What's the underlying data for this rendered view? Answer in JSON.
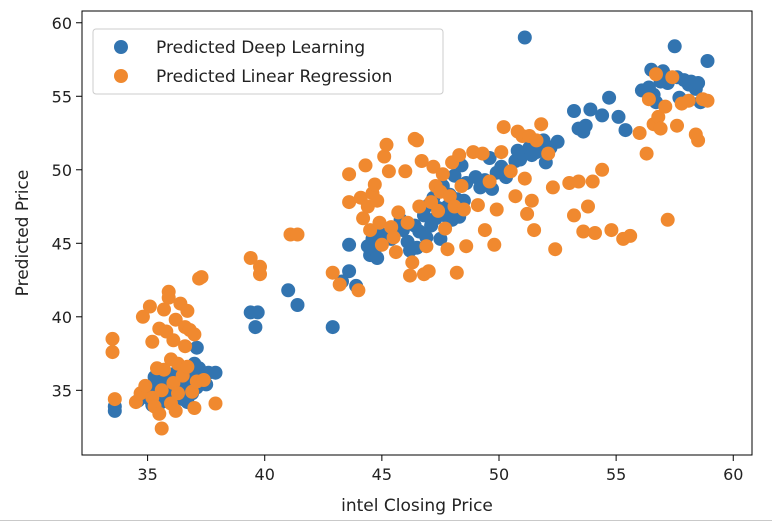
{
  "chart_data": {
    "type": "scatter",
    "xlabel": "intel Closing Price",
    "ylabel": "Predicted Price",
    "xlim": [
      32.2,
      60.8
    ],
    "ylim": [
      30.6,
      60.8
    ],
    "xticks": [
      35,
      40,
      45,
      50,
      55,
      60
    ],
    "yticks": [
      35,
      40,
      45,
      50,
      55,
      60
    ],
    "grid": false,
    "legend_position": "upper-left",
    "series": [
      {
        "name": "Predicted Deep Learning",
        "color": "#3274b0",
        "points": [
          [
            33.6,
            33.6
          ],
          [
            33.6,
            33.9
          ],
          [
            34.6,
            34.3
          ],
          [
            34.8,
            34.6
          ],
          [
            34.9,
            34.9
          ],
          [
            35.0,
            35.1
          ],
          [
            35.1,
            34.4
          ],
          [
            35.2,
            34.0
          ],
          [
            35.2,
            35.3
          ],
          [
            35.3,
            34.8
          ],
          [
            35.4,
            35.5
          ],
          [
            35.5,
            34.5
          ],
          [
            35.6,
            35.1
          ],
          [
            35.6,
            34.2
          ],
          [
            35.7,
            35.8
          ],
          [
            35.8,
            34.9
          ],
          [
            35.8,
            35.4
          ],
          [
            35.9,
            35.0
          ],
          [
            36.0,
            35.7
          ],
          [
            36.0,
            34.6
          ],
          [
            36.1,
            36.1
          ],
          [
            36.2,
            35.2
          ],
          [
            36.2,
            34.8
          ],
          [
            36.3,
            35.6
          ],
          [
            36.4,
            35.0
          ],
          [
            36.4,
            36.0
          ],
          [
            36.5,
            34.4
          ],
          [
            36.6,
            35.4
          ],
          [
            36.7,
            35.9
          ],
          [
            36.8,
            35.1
          ],
          [
            36.8,
            36.3
          ],
          [
            36.9,
            34.8
          ],
          [
            37.0,
            35.6
          ],
          [
            37.0,
            36.8
          ],
          [
            37.1,
            35.2
          ],
          [
            37.1,
            37.9
          ],
          [
            37.2,
            36.5
          ],
          [
            37.3,
            35.9
          ],
          [
            37.5,
            35.4
          ],
          [
            37.6,
            36.2
          ],
          [
            37.9,
            36.2
          ],
          [
            35.3,
            35.9
          ],
          [
            36.7,
            34.2
          ],
          [
            39.4,
            40.3
          ],
          [
            39.6,
            39.3
          ],
          [
            39.7,
            40.3
          ],
          [
            41.0,
            41.8
          ],
          [
            41.4,
            40.8
          ],
          [
            42.9,
            39.3
          ],
          [
            43.3,
            42.4
          ],
          [
            43.6,
            43.1
          ],
          [
            43.6,
            44.9
          ],
          [
            43.9,
            42.1
          ],
          [
            44.4,
            44.8
          ],
          [
            44.5,
            44.2
          ],
          [
            44.6,
            45.3
          ],
          [
            44.7,
            44.6
          ],
          [
            44.8,
            44.0
          ],
          [
            45.0,
            45.6
          ],
          [
            45.4,
            45.3
          ],
          [
            45.6,
            46.1
          ],
          [
            45.8,
            46.6
          ],
          [
            45.9,
            45.9
          ],
          [
            46.1,
            45.1
          ],
          [
            46.2,
            44.5
          ],
          [
            46.4,
            46.2
          ],
          [
            46.5,
            44.7
          ],
          [
            46.6,
            45.8
          ],
          [
            46.8,
            46.9
          ],
          [
            46.9,
            45.4
          ],
          [
            47.0,
            47.6
          ],
          [
            47.1,
            46.2
          ],
          [
            47.2,
            48.1
          ],
          [
            47.3,
            46.7
          ],
          [
            47.4,
            47.4
          ],
          [
            47.5,
            45.3
          ],
          [
            47.6,
            48.9
          ],
          [
            47.7,
            46.9
          ],
          [
            47.8,
            47.5
          ],
          [
            47.9,
            48.3
          ],
          [
            48.0,
            46.6
          ],
          [
            48.0,
            47.2
          ],
          [
            48.1,
            49.6
          ],
          [
            48.2,
            48.0
          ],
          [
            48.3,
            46.8
          ],
          [
            48.4,
            50.3
          ],
          [
            48.5,
            47.9
          ],
          [
            48.6,
            49.1
          ],
          [
            49.0,
            49.5
          ],
          [
            49.2,
            48.8
          ],
          [
            49.4,
            49.3
          ],
          [
            49.6,
            50.8
          ],
          [
            49.7,
            48.7
          ],
          [
            49.9,
            49.8
          ],
          [
            50.1,
            50.2
          ],
          [
            50.3,
            49.5
          ],
          [
            50.7,
            50.6
          ],
          [
            50.8,
            51.3
          ],
          [
            50.9,
            50.7
          ],
          [
            51.0,
            51.1
          ],
          [
            51.1,
            59.0
          ],
          [
            51.3,
            51.5
          ],
          [
            51.4,
            51.0
          ],
          [
            51.6,
            51.2
          ],
          [
            51.7,
            51.8
          ],
          [
            51.9,
            52.0
          ],
          [
            52.0,
            50.5
          ],
          [
            52.2,
            51.5
          ],
          [
            52.5,
            51.9
          ],
          [
            53.2,
            54.0
          ],
          [
            53.4,
            52.8
          ],
          [
            53.6,
            52.6
          ],
          [
            53.7,
            53.0
          ],
          [
            53.9,
            54.1
          ],
          [
            54.4,
            53.7
          ],
          [
            54.7,
            54.9
          ],
          [
            55.1,
            53.6
          ],
          [
            55.4,
            52.7
          ],
          [
            56.1,
            55.4
          ],
          [
            56.4,
            55.6
          ],
          [
            56.5,
            56.8
          ],
          [
            56.6,
            55.1
          ],
          [
            56.7,
            54.6
          ],
          [
            56.9,
            56.0
          ],
          [
            57.0,
            56.7
          ],
          [
            57.2,
            55.9
          ],
          [
            57.5,
            58.4
          ],
          [
            57.6,
            56.3
          ],
          [
            57.7,
            54.9
          ],
          [
            57.9,
            56.1
          ],
          [
            58.1,
            55.8
          ],
          [
            58.2,
            56.0
          ],
          [
            58.4,
            55.5
          ],
          [
            58.5,
            55.9
          ],
          [
            58.6,
            54.6
          ],
          [
            58.9,
            57.4
          ]
        ]
      },
      {
        "name": "Predicted Linear Regression",
        "color": "#f0892f",
        "points": [
          [
            33.5,
            38.5
          ],
          [
            33.5,
            37.6
          ],
          [
            33.6,
            34.4
          ],
          [
            34.5,
            34.2
          ],
          [
            34.7,
            34.8
          ],
          [
            34.8,
            40.0
          ],
          [
            34.9,
            35.3
          ],
          [
            35.1,
            40.7
          ],
          [
            35.2,
            38.3
          ],
          [
            35.2,
            34.5
          ],
          [
            35.3,
            33.9
          ],
          [
            35.5,
            39.2
          ],
          [
            35.5,
            33.4
          ],
          [
            35.6,
            32.4
          ],
          [
            35.6,
            35.0
          ],
          [
            35.7,
            36.4
          ],
          [
            35.7,
            40.5
          ],
          [
            35.8,
            39.0
          ],
          [
            35.9,
            41.7
          ],
          [
            35.9,
            41.3
          ],
          [
            36.0,
            37.1
          ],
          [
            36.0,
            34.1
          ],
          [
            36.1,
            38.4
          ],
          [
            36.1,
            35.5
          ],
          [
            36.2,
            39.8
          ],
          [
            36.3,
            36.8
          ],
          [
            36.3,
            34.8
          ],
          [
            36.4,
            40.9
          ],
          [
            36.5,
            36.0
          ],
          [
            36.6,
            39.3
          ],
          [
            36.6,
            38.0
          ],
          [
            36.7,
            36.6
          ],
          [
            36.7,
            40.4
          ],
          [
            36.8,
            39.1
          ],
          [
            36.9,
            34.9
          ],
          [
            37.0,
            33.8
          ],
          [
            37.0,
            38.8
          ],
          [
            37.1,
            35.6
          ],
          [
            37.2,
            42.6
          ],
          [
            37.3,
            42.7
          ],
          [
            37.4,
            35.7
          ],
          [
            37.9,
            34.1
          ],
          [
            35.4,
            36.5
          ],
          [
            36.2,
            33.6
          ],
          [
            39.4,
            44.0
          ],
          [
            39.8,
            42.9
          ],
          [
            39.8,
            43.4
          ],
          [
            41.1,
            45.6
          ],
          [
            41.4,
            45.6
          ],
          [
            42.9,
            43.0
          ],
          [
            43.2,
            42.2
          ],
          [
            43.6,
            49.7
          ],
          [
            43.6,
            47.8
          ],
          [
            44.0,
            41.8
          ],
          [
            44.1,
            48.1
          ],
          [
            44.2,
            46.7
          ],
          [
            44.3,
            50.3
          ],
          [
            44.4,
            47.5
          ],
          [
            44.5,
            45.9
          ],
          [
            44.6,
            48.4
          ],
          [
            44.7,
            49.0
          ],
          [
            44.8,
            47.9
          ],
          [
            44.9,
            46.4
          ],
          [
            45.0,
            44.9
          ],
          [
            45.1,
            50.9
          ],
          [
            45.2,
            51.7
          ],
          [
            45.3,
            49.9
          ],
          [
            45.4,
            46.1
          ],
          [
            45.5,
            45.4
          ],
          [
            45.6,
            44.4
          ],
          [
            45.7,
            47.1
          ],
          [
            46.0,
            49.9
          ],
          [
            46.1,
            46.4
          ],
          [
            46.2,
            42.8
          ],
          [
            46.3,
            43.7
          ],
          [
            46.4,
            52.1
          ],
          [
            46.5,
            52.0
          ],
          [
            46.6,
            47.5
          ],
          [
            46.7,
            50.6
          ],
          [
            46.8,
            42.9
          ],
          [
            46.9,
            44.8
          ],
          [
            47.0,
            43.1
          ],
          [
            47.1,
            47.8
          ],
          [
            47.2,
            50.2
          ],
          [
            47.3,
            48.9
          ],
          [
            47.4,
            47.2
          ],
          [
            47.5,
            48.5
          ],
          [
            47.6,
            49.7
          ],
          [
            47.7,
            46.0
          ],
          [
            47.8,
            44.6
          ],
          [
            47.9,
            48.2
          ],
          [
            48.0,
            50.5
          ],
          [
            48.1,
            47.5
          ],
          [
            48.2,
            43.0
          ],
          [
            48.3,
            51.0
          ],
          [
            48.4,
            48.9
          ],
          [
            48.5,
            47.3
          ],
          [
            48.6,
            44.8
          ],
          [
            48.9,
            51.2
          ],
          [
            49.1,
            47.6
          ],
          [
            49.3,
            51.1
          ],
          [
            49.4,
            45.9
          ],
          [
            49.6,
            49.2
          ],
          [
            49.8,
            44.9
          ],
          [
            49.9,
            47.3
          ],
          [
            50.1,
            51.2
          ],
          [
            50.2,
            52.9
          ],
          [
            50.5,
            49.9
          ],
          [
            50.7,
            48.2
          ],
          [
            50.8,
            52.6
          ],
          [
            51.0,
            52.3
          ],
          [
            51.1,
            49.4
          ],
          [
            51.2,
            47.0
          ],
          [
            51.3,
            52.3
          ],
          [
            51.4,
            47.9
          ],
          [
            51.5,
            45.9
          ],
          [
            51.6,
            52.0
          ],
          [
            51.8,
            53.1
          ],
          [
            52.1,
            51.1
          ],
          [
            52.3,
            48.8
          ],
          [
            52.4,
            44.6
          ],
          [
            53.0,
            49.1
          ],
          [
            53.2,
            46.9
          ],
          [
            53.4,
            49.2
          ],
          [
            53.6,
            45.8
          ],
          [
            53.8,
            47.5
          ],
          [
            54.0,
            49.2
          ],
          [
            54.1,
            45.7
          ],
          [
            54.4,
            50.0
          ],
          [
            54.8,
            45.9
          ],
          [
            55.3,
            45.3
          ],
          [
            55.6,
            45.5
          ],
          [
            56.0,
            52.5
          ],
          [
            56.3,
            51.1
          ],
          [
            56.4,
            54.8
          ],
          [
            56.6,
            53.1
          ],
          [
            56.7,
            56.5
          ],
          [
            56.8,
            53.6
          ],
          [
            56.9,
            52.8
          ],
          [
            57.1,
            54.3
          ],
          [
            57.2,
            46.6
          ],
          [
            57.4,
            56.3
          ],
          [
            57.6,
            53.0
          ],
          [
            57.8,
            54.5
          ],
          [
            58.1,
            54.7
          ],
          [
            58.4,
            52.4
          ],
          [
            58.5,
            52.0
          ],
          [
            58.7,
            54.8
          ],
          [
            58.9,
            54.7
          ]
        ]
      }
    ]
  }
}
